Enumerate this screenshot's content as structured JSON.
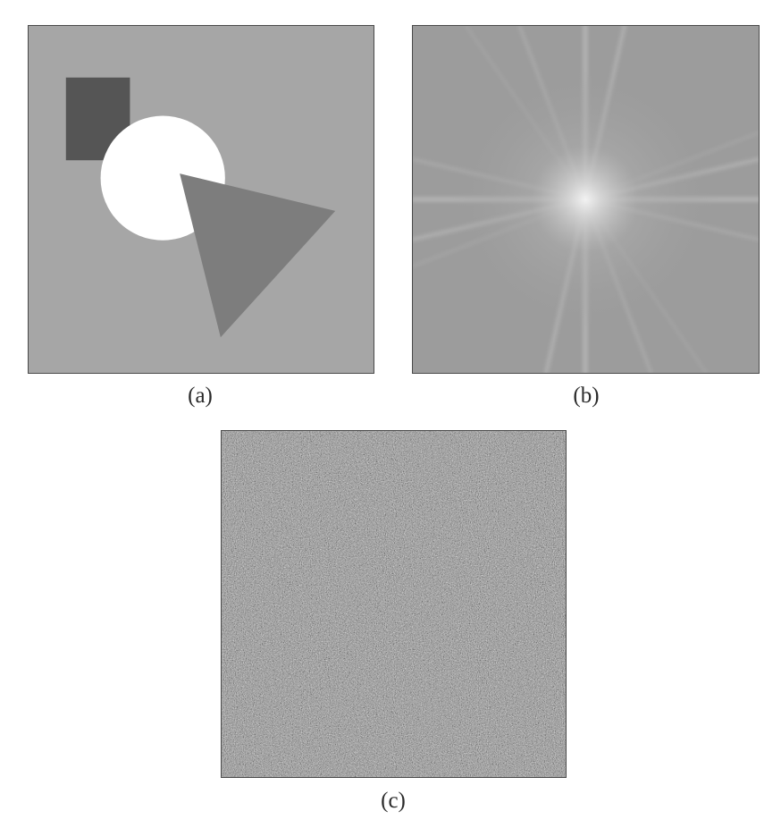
{
  "captions": {
    "a": "(a)",
    "b": "(b)",
    "c": "(c)"
  },
  "colors": {
    "panel_a_background": "#a6a6a6",
    "rectangle": "#555555",
    "circle": "#ffffff",
    "triangle": "#7d7d7d",
    "spectrum_background": "#9c9c9c",
    "spectrum_center": "#f2f2f2",
    "noise_base": "#8f8f8f"
  }
}
